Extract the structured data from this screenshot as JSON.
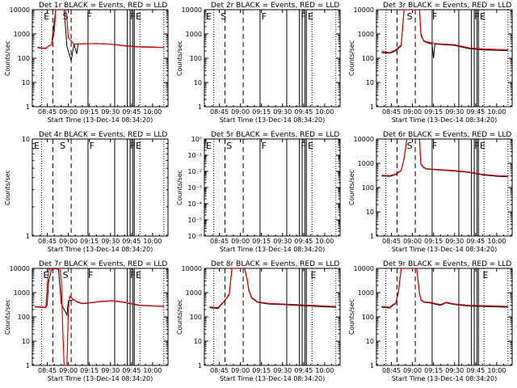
{
  "figure": {
    "xlabel": "Start Time (13-Dec-14 08:34:20)",
    "ylabel": "Counts/sec",
    "x_ticks": [
      "08:45",
      "09:00",
      "09:15",
      "09:30",
      "09:45",
      "10:00"
    ],
    "x_tick_minutes": [
      45,
      60,
      75,
      90,
      105,
      120
    ],
    "x_range_minutes": [
      34.33,
      131
    ],
    "colors": {
      "events": "#000000",
      "lld": "#dd0000"
    }
  },
  "chart_data": [
    {
      "type": "line",
      "title": "Det 1r BLACK = Events, RED = LLD",
      "ylim": [
        1,
        10000
      ],
      "yscale": "log",
      "y_ticks": [
        "1",
        "10",
        "100",
        "1000",
        "10000"
      ],
      "y_tick_values": [
        1,
        10,
        100,
        1000,
        10000
      ],
      "markers": [
        {
          "label": "E",
          "x": 42.5
        },
        {
          "label": "S",
          "x": 56
        },
        {
          "label": "F",
          "x": 73
        },
        {
          "label": "F",
          "x": 104
        },
        {
          "label": "E",
          "x": 108
        }
      ],
      "series": [
        {
          "role": "events",
          "x": [
            38,
            44,
            46,
            48,
            51,
            52,
            53,
            54,
            56,
            57,
            59,
            62,
            64,
            66,
            67,
            68,
            70,
            80,
            90,
            100,
            110,
            120,
            128
          ],
          "y": [
            280,
            260,
            320,
            350,
            10000,
            10000,
            10000,
            10000,
            10000,
            10000,
            300,
            80,
            380,
            150,
            400,
            380,
            390,
            400,
            380,
            330,
            300,
            290,
            280
          ]
        },
        {
          "role": "lld",
          "x": [
            38,
            44,
            46,
            48,
            50,
            51,
            52,
            54,
            56,
            58,
            59,
            60,
            64,
            70,
            80,
            90,
            100,
            110,
            120,
            128
          ],
          "y": [
            270,
            250,
            320,
            350,
            1200,
            10000,
            10000,
            10000,
            10000,
            10000,
            4000,
            700,
            380,
            390,
            400,
            380,
            320,
            290,
            280,
            280
          ]
        }
      ]
    },
    {
      "type": "line",
      "title": "Det 2r BLACK = Events, RED = LLD",
      "ylim": [
        1,
        10000
      ],
      "yscale": "log",
      "y_ticks": [
        "1",
        "10",
        "100",
        "1000",
        "10000"
      ],
      "y_tick_values": [
        1,
        10,
        100,
        1000,
        10000
      ],
      "markers": [
        {
          "label": "E",
          "x": 35.5
        },
        {
          "label": "S",
          "x": 46
        },
        {
          "label": "F",
          "x": 75
        },
        {
          "label": "F",
          "x": 103
        },
        {
          "label": "E",
          "x": 108
        }
      ],
      "series": []
    },
    {
      "type": "line",
      "title": "Det 3r BLACK = Events, RED = LLD",
      "ylim": [
        1,
        10000
      ],
      "yscale": "log",
      "y_ticks": [
        "1",
        "10",
        "100",
        "1000",
        "10000"
      ],
      "y_tick_values": [
        1,
        10,
        100,
        1000,
        10000
      ],
      "markers": [
        {
          "label": "S",
          "x": 56
        },
        {
          "label": "F",
          "x": 74
        },
        {
          "label": "F",
          "x": 104
        },
        {
          "label": "E",
          "x": 108
        }
      ],
      "series": [
        {
          "role": "events",
          "x": [
            38,
            44,
            48,
            52,
            54,
            56,
            60,
            63,
            65,
            66,
            68,
            70,
            74,
            75,
            76,
            80,
            90,
            100,
            110,
            120,
            128
          ],
          "y": [
            170,
            160,
            200,
            320,
            10000,
            10000,
            10000,
            10000,
            10000,
            900,
            500,
            450,
            380,
            100,
            380,
            370,
            340,
            250,
            220,
            210,
            205
          ]
        },
        {
          "role": "lld",
          "x": [
            38,
            44,
            48,
            52,
            54,
            56,
            60,
            63,
            65,
            66,
            68,
            70,
            76,
            80,
            90,
            100,
            110,
            120,
            128
          ],
          "y": [
            190,
            170,
            220,
            350,
            10000,
            10000,
            10000,
            10000,
            10000,
            1000,
            520,
            480,
            400,
            390,
            360,
            270,
            240,
            230,
            220
          ]
        }
      ]
    },
    {
      "type": "line",
      "title": "Det 4r BLACK = Events, RED = LLD",
      "ylim": [
        1,
        10
      ],
      "yscale": "log",
      "y_ticks": [
        "1",
        "10"
      ],
      "y_tick_values": [
        1,
        10
      ],
      "markers": [
        {
          "label": "E",
          "x": 35.5
        },
        {
          "label": "S",
          "x": 54
        },
        {
          "label": "F",
          "x": 75
        },
        {
          "label": "F",
          "x": 104
        },
        {
          "label": "E",
          "x": 108
        }
      ],
      "series": []
    },
    {
      "type": "line",
      "title": "Det 5r BLACK = Events, RED = LLD",
      "ylim": [
        1e-06,
        1
      ],
      "yscale": "log",
      "y_ticks": [
        "10⁻⁶",
        "10⁻⁵",
        "10⁻⁴",
        "10⁻³",
        "10⁻²",
        "10⁻¹",
        "10⁰"
      ],
      "y_tick_values": [
        1e-06,
        1e-05,
        0.0001,
        0.001,
        0.01,
        0.1,
        1
      ],
      "markers": [
        {
          "label": "E",
          "x": 35.5
        },
        {
          "label": "S",
          "x": 50
        },
        {
          "label": "F",
          "x": 75
        },
        {
          "label": "F",
          "x": 103
        },
        {
          "label": "E",
          "x": 108
        }
      ],
      "series": []
    },
    {
      "type": "line",
      "title": "Det 6r BLACK = Events, RED = LLD",
      "ylim": [
        1,
        10000
      ],
      "yscale": "log",
      "y_ticks": [
        "1",
        "10",
        "100",
        "1000",
        "10000"
      ],
      "y_tick_values": [
        1,
        10,
        100,
        1000,
        10000
      ],
      "markers": [
        {
          "label": "S",
          "x": 56
        },
        {
          "label": "F",
          "x": 74
        },
        {
          "label": "F",
          "x": 104
        },
        {
          "label": "E",
          "x": 108
        }
      ],
      "series": [
        {
          "role": "events",
          "x": [
            38,
            44,
            48,
            52,
            54,
            56,
            60,
            63,
            65,
            66,
            68,
            70,
            80,
            90,
            100,
            110,
            120,
            128
          ],
          "y": [
            300,
            290,
            340,
            500,
            1500,
            10000,
            10000,
            10000,
            10000,
            900,
            650,
            580,
            520,
            480,
            420,
            330,
            290,
            280
          ]
        },
        {
          "role": "lld",
          "x": [
            38,
            44,
            48,
            52,
            54,
            56,
            60,
            63,
            65,
            66,
            68,
            70,
            80,
            90,
            100,
            110,
            120,
            128
          ],
          "y": [
            320,
            310,
            360,
            520,
            1600,
            10000,
            10000,
            10000,
            10000,
            950,
            680,
            600,
            540,
            500,
            440,
            350,
            310,
            300
          ]
        }
      ]
    },
    {
      "type": "line",
      "title": "Det 7r BLACK = Events, RED = LLD",
      "ylim": [
        1,
        10000
      ],
      "yscale": "log",
      "y_ticks": [
        "1",
        "10",
        "100",
        "1000",
        "10000"
      ],
      "y_tick_values": [
        1,
        10,
        100,
        1000,
        10000
      ],
      "markers": [
        {
          "label": "E",
          "x": 42
        },
        {
          "label": "S",
          "x": 56
        },
        {
          "label": "F",
          "x": 74
        },
        {
          "label": "F",
          "x": 104
        },
        {
          "label": "E",
          "x": 108
        }
      ],
      "series": [
        {
          "role": "events",
          "x": [
            36,
            40,
            44,
            45,
            46,
            48,
            50,
            51,
            53,
            55,
            57,
            59,
            60,
            64,
            66,
            70,
            76,
            84,
            92,
            100,
            110,
            120,
            128
          ],
          "y": [
            270,
            260,
            250,
            320,
            3000,
            9000,
            9500,
            9800,
            9000,
            350,
            200,
            120,
            450,
            520,
            410,
            350,
            380,
            430,
            450,
            390,
            300,
            280,
            270
          ]
        },
        {
          "role": "lld",
          "x": [
            36,
            44,
            45,
            46,
            48,
            50,
            52,
            54,
            55,
            56,
            57,
            58,
            59,
            60,
            61,
            62,
            64,
            66,
            70,
            76,
            84,
            92,
            100,
            110,
            120,
            128
          ],
          "y": [
            260,
            240,
            2000,
            9000,
            10000,
            10000,
            10000,
            10000,
            3000,
            30,
            1,
            1,
            1,
            200,
            700,
            600,
            500,
            430,
            360,
            390,
            440,
            460,
            400,
            310,
            285,
            275
          ]
        }
      ]
    },
    {
      "type": "line",
      "title": "Det 8r BLACK = Events, RED = LLD",
      "ylim": [
        1,
        10000
      ],
      "yscale": "log",
      "y_ticks": [
        "1",
        "10",
        "100",
        "1000",
        "10000"
      ],
      "y_tick_values": [
        1,
        10,
        100,
        1000,
        10000
      ],
      "markers": [
        {
          "label": "E",
          "x": 110
        }
      ],
      "series": [
        {
          "role": "events",
          "x": [
            38,
            44,
            46,
            48,
            52,
            54,
            56,
            60,
            63,
            65,
            66,
            68,
            72,
            80,
            90,
            100,
            110,
            120,
            128
          ],
          "y": [
            240,
            220,
            300,
            400,
            800,
            10000,
            10000,
            10000,
            10000,
            3000,
            1200,
            600,
            400,
            340,
            320,
            300,
            280,
            260,
            250
          ]
        },
        {
          "role": "lld",
          "x": [
            38,
            44,
            46,
            48,
            52,
            54,
            56,
            60,
            63,
            65,
            66,
            68,
            72,
            80,
            90,
            100,
            110,
            120,
            128
          ],
          "y": [
            260,
            240,
            320,
            420,
            850,
            10000,
            10000,
            10000,
            10000,
            3200,
            1300,
            640,
            420,
            360,
            340,
            320,
            300,
            280,
            270
          ]
        }
      ]
    },
    {
      "type": "line",
      "title": "Det 9r BLACK = Events, RED = LLD",
      "ylim": [
        1,
        10000
      ],
      "yscale": "log",
      "y_ticks": [
        "1",
        "10",
        "100",
        "1000",
        "10000"
      ],
      "y_tick_values": [
        1,
        10,
        100,
        1000,
        10000
      ],
      "markers": [
        {
          "label": "E",
          "x": 110
        }
      ],
      "series": [
        {
          "role": "events",
          "x": [
            38,
            44,
            46,
            48,
            50,
            52,
            54,
            56,
            60,
            63,
            65,
            66,
            68,
            72,
            80,
            84,
            90,
            100,
            110,
            120,
            128
          ],
          "y": [
            250,
            230,
            300,
            350,
            1000,
            10000,
            10000,
            10000,
            10000,
            10000,
            900,
            500,
            400,
            380,
            300,
            380,
            320,
            280,
            270,
            260,
            250
          ]
        },
        {
          "role": "lld",
          "x": [
            38,
            44,
            46,
            48,
            50,
            52,
            54,
            56,
            60,
            63,
            65,
            66,
            68,
            72,
            80,
            84,
            90,
            100,
            110,
            120,
            128
          ],
          "y": [
            270,
            250,
            320,
            370,
            1100,
            10000,
            10000,
            10000,
            10000,
            10000,
            950,
            530,
            420,
            400,
            320,
            400,
            340,
            300,
            290,
            280,
            270
          ]
        }
      ]
    }
  ]
}
